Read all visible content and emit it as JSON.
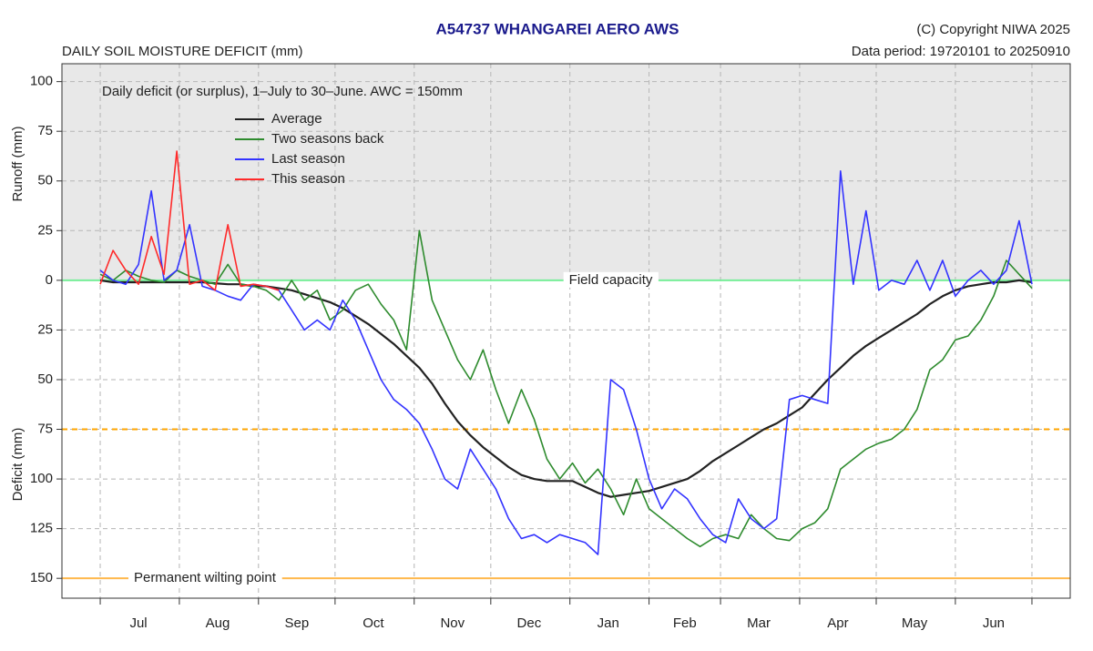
{
  "chart_data": {
    "type": "line",
    "title": "A54737  WHANGAREI AERO AWS",
    "subtitle": "DAILY SOIL MOISTURE DEFICIT (mm)",
    "copyright": "(C) Copyright NIWA  2025",
    "data_period": "Data period:  19720101  to  20250910",
    "note": "Daily deficit (or surplus), 1–July to 30–June.  AWC = 150mm",
    "y_label_top": "Runoff (mm)",
    "y_label_bottom": "Deficit (mm)",
    "xlim": [
      -15,
      380
    ],
    "ylim": [
      -160,
      109
    ],
    "xgrid": [
      0,
      31,
      62,
      92,
      123,
      153,
      184,
      215,
      243,
      274,
      304,
      335,
      365
    ],
    "xticks": [
      {
        "value": 15,
        "label": "Jul"
      },
      {
        "value": 46,
        "label": "Aug"
      },
      {
        "value": 77,
        "label": "Sep"
      },
      {
        "value": 107,
        "label": "Oct"
      },
      {
        "value": 138,
        "label": "Nov"
      },
      {
        "value": 168,
        "label": "Dec"
      },
      {
        "value": 199,
        "label": "Jan"
      },
      {
        "value": 229,
        "label": "Feb"
      },
      {
        "value": 258,
        "label": "Mar"
      },
      {
        "value": 289,
        "label": "Apr"
      },
      {
        "value": 319,
        "label": "May"
      },
      {
        "value": 350,
        "label": "Jun"
      }
    ],
    "yticks": [
      100,
      75,
      50,
      25,
      0,
      {
        "value": -25,
        "label": "25"
      },
      {
        "value": -50,
        "label": "50"
      },
      {
        "value": -75,
        "label": "75"
      },
      {
        "value": -100,
        "label": "100"
      },
      {
        "value": -125,
        "label": "125"
      },
      {
        "value": -150,
        "label": "150"
      }
    ],
    "grid": true,
    "surplus_shading": "#e8e8e8",
    "reference_lines": [
      {
        "value": 0,
        "label": "Field capacity",
        "color": "#77ee99",
        "label_x": 200
      },
      {
        "value": -75,
        "color": "#ffa500",
        "dashed": true
      },
      {
        "value": -150,
        "label": "Permanent wilting point",
        "color": "#ffb84d",
        "label_x": 41
      }
    ],
    "x": [
      0,
      5,
      10,
      15,
      20,
      25,
      30,
      35,
      40,
      45,
      50,
      55,
      60,
      65,
      70,
      75,
      80,
      85,
      90,
      95,
      100,
      105,
      110,
      115,
      120,
      125,
      130,
      135,
      140,
      145,
      150,
      155,
      160,
      165,
      170,
      175,
      180,
      185,
      190,
      195,
      200,
      205,
      210,
      215,
      220,
      225,
      230,
      235,
      240,
      245,
      250,
      255,
      260,
      265,
      270,
      275,
      280,
      285,
      290,
      295,
      300,
      305,
      310,
      315,
      320,
      325,
      330,
      335,
      340,
      345,
      350,
      355,
      360,
      365
    ],
    "series": [
      {
        "name": "Average",
        "color": "#222222",
        "width": 2.2,
        "values": [
          0,
          -1,
          -1,
          -1,
          -1,
          -1,
          -1,
          -1,
          -1,
          -1.5,
          -2,
          -2,
          -3,
          -3,
          -4,
          -5,
          -7,
          -9,
          -11,
          -14,
          -18,
          -22,
          -27,
          -32,
          -38,
          -44,
          -52,
          -62,
          -71,
          -78,
          -84,
          -89,
          -94,
          -98,
          -100,
          -101,
          -101,
          -101,
          -104,
          -107,
          -109,
          -108,
          -107,
          -106,
          -104,
          -102,
          -100,
          -96,
          -91,
          -87,
          -83,
          -79,
          -75,
          -72,
          -68,
          -64,
          -57,
          -50,
          -44,
          -38,
          -33,
          -29,
          -25,
          -21,
          -17,
          -12,
          -8,
          -5,
          -3,
          -2,
          -1,
          -1,
          0,
          -1
        ]
      },
      {
        "name": "Two seasons back",
        "color": "#2e8b2e",
        "width": 1.6,
        "values": [
          3,
          0,
          5,
          2,
          0,
          -1,
          5,
          2,
          0,
          -2,
          8,
          -2,
          -3,
          -5,
          -10,
          0,
          -10,
          -5,
          -20,
          -15,
          -5,
          -2,
          -12,
          -20,
          -35,
          25,
          -10,
          -25,
          -40,
          -50,
          -35,
          -55,
          -72,
          -55,
          -70,
          -90,
          -100,
          -92,
          -102,
          -95,
          -105,
          -118,
          -100,
          -115,
          -120,
          -125,
          -130,
          -134,
          -130,
          -128,
          -130,
          -118,
          -125,
          -130,
          -131,
          -125,
          -122,
          -115,
          -95,
          -90,
          -85,
          -82,
          -80,
          -75,
          -65,
          -45,
          -40,
          -30,
          -28,
          -20,
          -8,
          10,
          3,
          -4
        ]
      },
      {
        "name": "Last season",
        "color": "#3333ff",
        "width": 1.6,
        "values": [
          5,
          0,
          -2,
          8,
          45,
          0,
          5,
          28,
          -3,
          -5,
          -8,
          -10,
          -2,
          -3,
          -5,
          -15,
          -25,
          -20,
          -25,
          -10,
          -20,
          -35,
          -50,
          -60,
          -65,
          -72,
          -85,
          -100,
          -105,
          -85,
          -95,
          -105,
          -120,
          -130,
          -128,
          -132,
          -128,
          -130,
          -132,
          -138,
          -50,
          -55,
          -75,
          -100,
          -115,
          -105,
          -110,
          -120,
          -128,
          -132,
          -110,
          -120,
          -125,
          -120,
          -60,
          -58,
          -60,
          -62,
          55,
          -2,
          35,
          -5,
          0,
          -2,
          10,
          -5,
          10,
          -8,
          0,
          5,
          -2,
          5,
          30,
          -2
        ]
      },
      {
        "name": "This season",
        "color": "#ff2a2a",
        "width": 1.6,
        "values": [
          -2,
          15,
          5,
          -2,
          22,
          3,
          65,
          -2,
          0,
          -5,
          28,
          -3,
          -2,
          -3,
          -5,
          null,
          null,
          null,
          null,
          null,
          null,
          null,
          null,
          null,
          null,
          null,
          null,
          null,
          null,
          null,
          null,
          null,
          null,
          null,
          null,
          null,
          null,
          null,
          null,
          null,
          null,
          null,
          null,
          null,
          null,
          null,
          null,
          null,
          null,
          null,
          null,
          null,
          null,
          null,
          null,
          null,
          null,
          null,
          null,
          null,
          null,
          null,
          null,
          null,
          null,
          null,
          null,
          null,
          null,
          null,
          null,
          null,
          null,
          null
        ]
      }
    ]
  }
}
